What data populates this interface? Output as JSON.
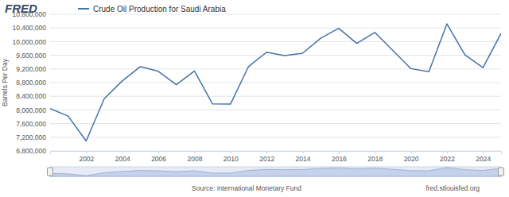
{
  "chart_data": {
    "type": "line",
    "logo": "FRED",
    "y_label": "Barrels Per Day",
    "source": "Source: International Monetary Fund",
    "credit": "fred.stlouisfed.org",
    "x": [
      2000,
      2001,
      2002,
      2003,
      2004,
      2005,
      2006,
      2007,
      2008,
      2009,
      2010,
      2011,
      2012,
      2013,
      2014,
      2015,
      2016,
      2017,
      2018,
      2019,
      2020,
      2021,
      2022,
      2023,
      2024,
      2025
    ],
    "series": [
      {
        "name": "Crude Oil Production for Saudi Arabia",
        "color": "#4572a7",
        "values": [
          8040000,
          7820000,
          7090000,
          8330000,
          8850000,
          9270000,
          9130000,
          8740000,
          9140000,
          8180000,
          8170000,
          9270000,
          9690000,
          9590000,
          9660000,
          10100000,
          10390000,
          9950000,
          10270000,
          9740000,
          9210000,
          9120000,
          10520000,
          9610000,
          9240000,
          10240000
        ]
      }
    ],
    "xlim": [
      2000,
      2025
    ],
    "xticks": [
      2002,
      2004,
      2006,
      2008,
      2010,
      2012,
      2014,
      2016,
      2018,
      2020,
      2022,
      2024
    ],
    "ylim": [
      6800000,
      10800000
    ],
    "yticks": [
      {
        "value": 6800000,
        "label": "6,800,000"
      },
      {
        "value": 7200000,
        "label": "7,200,000"
      },
      {
        "value": 7600000,
        "label": "7,600,000"
      },
      {
        "value": 8000000,
        "label": "8,000,000"
      },
      {
        "value": 8400000,
        "label": "8,400,000"
      },
      {
        "value": 8800000,
        "label": "8,800,000"
      },
      {
        "value": 9200000,
        "label": "9,200,000"
      },
      {
        "value": 9600000,
        "label": "9,600,000"
      },
      {
        "value": 10000000,
        "label": "10,000,000"
      },
      {
        "value": 10400000,
        "label": "10,400,000"
      },
      {
        "value": 10800000,
        "label": "10,800,000"
      }
    ],
    "grid": true
  }
}
